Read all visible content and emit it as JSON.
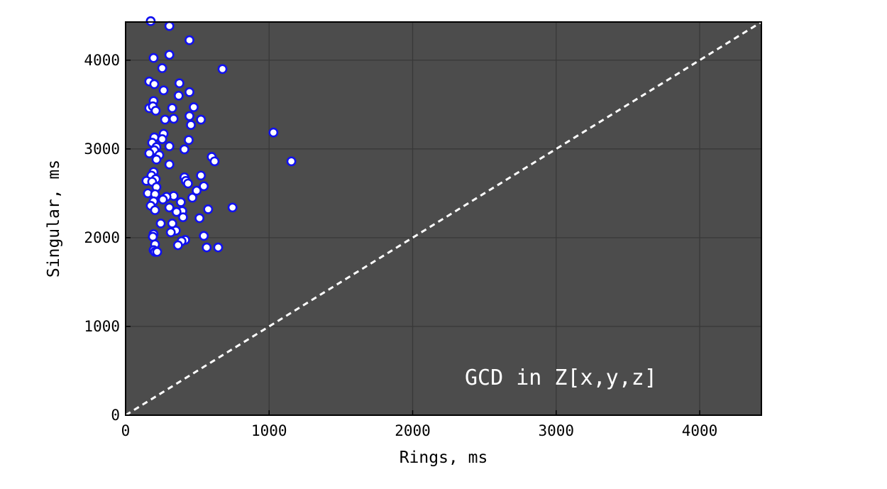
{
  "chart_data": {
    "type": "scatter",
    "xlabel": "Rings, ms",
    "ylabel": "Singular, ms",
    "xlim": [
      0,
      4430
    ],
    "ylim": [
      0,
      4430
    ],
    "xticks": [
      0,
      1000,
      2000,
      3000,
      4000
    ],
    "yticks": [
      0,
      1000,
      2000,
      3000,
      4000
    ],
    "grid": true,
    "annotation": "GCD in Z[x,y,z]",
    "reference_line": "y = x",
    "colors": {
      "plot_background": "#4c4c4c",
      "grid": "#383838",
      "marker_fill": "#ffffff",
      "marker_edge": "#1010ee",
      "reference_line": "#ffffff"
    },
    "series": [
      {
        "points": [
          [
            175,
            4440
          ],
          [
            305,
            4385
          ],
          [
            445,
            4225
          ],
          [
            305,
            4060
          ],
          [
            195,
            4025
          ],
          [
            255,
            3910
          ],
          [
            675,
            3900
          ],
          [
            165,
            3760
          ],
          [
            200,
            3730
          ],
          [
            375,
            3740
          ],
          [
            265,
            3660
          ],
          [
            445,
            3640
          ],
          [
            370,
            3600
          ],
          [
            195,
            3540
          ],
          [
            165,
            3460
          ],
          [
            190,
            3480
          ],
          [
            325,
            3460
          ],
          [
            475,
            3470
          ],
          [
            210,
            3430
          ],
          [
            445,
            3370
          ],
          [
            525,
            3330
          ],
          [
            275,
            3330
          ],
          [
            335,
            3340
          ],
          [
            455,
            3270
          ],
          [
            1030,
            3185
          ],
          [
            265,
            3170
          ],
          [
            200,
            3130
          ],
          [
            255,
            3110
          ],
          [
            440,
            3100
          ],
          [
            185,
            3070
          ],
          [
            305,
            3030
          ],
          [
            215,
            3020
          ],
          [
            410,
            2995
          ],
          [
            200,
            2985
          ],
          [
            165,
            2950
          ],
          [
            235,
            2930
          ],
          [
            600,
            2910
          ],
          [
            215,
            2880
          ],
          [
            620,
            2860
          ],
          [
            1155,
            2860
          ],
          [
            305,
            2825
          ],
          [
            195,
            2740
          ],
          [
            180,
            2700
          ],
          [
            525,
            2700
          ],
          [
            410,
            2680
          ],
          [
            210,
            2660
          ],
          [
            145,
            2640
          ],
          [
            185,
            2630
          ],
          [
            420,
            2640
          ],
          [
            435,
            2610
          ],
          [
            545,
            2580
          ],
          [
            215,
            2570
          ],
          [
            495,
            2530
          ],
          [
            155,
            2500
          ],
          [
            205,
            2490
          ],
          [
            335,
            2470
          ],
          [
            285,
            2460
          ],
          [
            465,
            2450
          ],
          [
            260,
            2430
          ],
          [
            195,
            2410
          ],
          [
            385,
            2400
          ],
          [
            175,
            2360
          ],
          [
            305,
            2340
          ],
          [
            745,
            2340
          ],
          [
            575,
            2320
          ],
          [
            205,
            2310
          ],
          [
            395,
            2300
          ],
          [
            355,
            2290
          ],
          [
            400,
            2230
          ],
          [
            515,
            2220
          ],
          [
            245,
            2160
          ],
          [
            325,
            2160
          ],
          [
            350,
            2080
          ],
          [
            315,
            2060
          ],
          [
            195,
            2040
          ],
          [
            545,
            2020
          ],
          [
            190,
            2010
          ],
          [
            415,
            1975
          ],
          [
            390,
            1960
          ],
          [
            205,
            1925
          ],
          [
            365,
            1915
          ],
          [
            565,
            1890
          ],
          [
            645,
            1890
          ],
          [
            195,
            1860
          ],
          [
            205,
            1840
          ],
          [
            220,
            1840
          ]
        ]
      }
    ]
  }
}
